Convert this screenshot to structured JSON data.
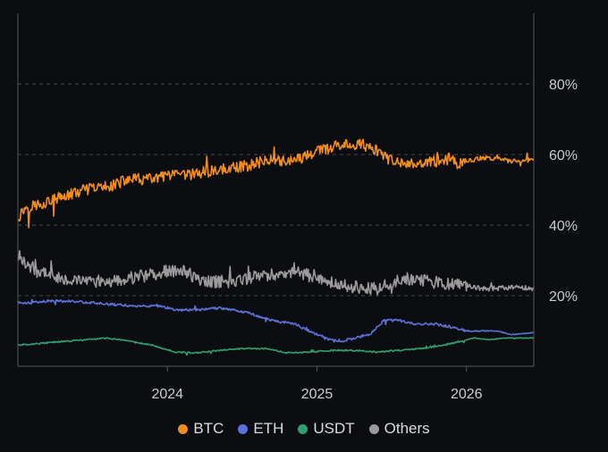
{
  "chart_data": {
    "type": "line",
    "title": "",
    "xlabel": "",
    "ylabel": "",
    "xlim": [
      2023.0,
      2026.45
    ],
    "ylim": [
      0,
      100
    ],
    "x_ticks": [
      {
        "value": 2024.0,
        "label": "2024"
      },
      {
        "value": 2025.0,
        "label": "2025"
      },
      {
        "value": 2026.0,
        "label": "2026"
      }
    ],
    "y_ticks": [
      {
        "value": 20,
        "label": "20%"
      },
      {
        "value": 40,
        "label": "40%"
      },
      {
        "value": 60,
        "label": "60%"
      },
      {
        "value": 80,
        "label": "80%"
      }
    ],
    "grid": "horizontal-dashed",
    "legend_position": "bottom-center",
    "series": [
      {
        "name": "BTC",
        "color": "#f08c1e",
        "points": [
          [
            2023.0,
            42
          ],
          [
            2023.05,
            45
          ],
          [
            2023.15,
            46
          ],
          [
            2023.3,
            48
          ],
          [
            2023.45,
            50
          ],
          [
            2023.6,
            51
          ],
          [
            2023.75,
            53
          ],
          [
            2023.9,
            53
          ],
          [
            2024.0,
            54
          ],
          [
            2024.1,
            54
          ],
          [
            2024.25,
            55
          ],
          [
            2024.4,
            56
          ],
          [
            2024.55,
            57
          ],
          [
            2024.7,
            59
          ],
          [
            2024.8,
            58
          ],
          [
            2024.9,
            59
          ],
          [
            2025.0,
            61
          ],
          [
            2025.1,
            62
          ],
          [
            2025.2,
            63
          ],
          [
            2025.3,
            63
          ],
          [
            2025.4,
            61
          ],
          [
            2025.5,
            58
          ],
          [
            2025.6,
            57
          ],
          [
            2025.7,
            58
          ],
          [
            2025.8,
            58
          ],
          [
            2025.9,
            59
          ],
          [
            2025.95,
            57
          ],
          [
            2026.0,
            58
          ],
          [
            2026.1,
            59
          ],
          [
            2026.2,
            59
          ],
          [
            2026.3,
            58
          ],
          [
            2026.45,
            58.5
          ]
        ]
      },
      {
        "name": "ETH",
        "color": "#5b73d9",
        "points": [
          [
            2023.0,
            18
          ],
          [
            2023.1,
            18
          ],
          [
            2023.2,
            18.5
          ],
          [
            2023.35,
            18.5
          ],
          [
            2023.5,
            18
          ],
          [
            2023.65,
            17.5
          ],
          [
            2023.8,
            17
          ],
          [
            2023.95,
            17
          ],
          [
            2024.05,
            16
          ],
          [
            2024.2,
            16
          ],
          [
            2024.35,
            16.5
          ],
          [
            2024.45,
            16
          ],
          [
            2024.55,
            15
          ],
          [
            2024.7,
            13
          ],
          [
            2024.85,
            12
          ],
          [
            2024.95,
            10
          ],
          [
            2025.05,
            8
          ],
          [
            2025.15,
            7
          ],
          [
            2025.25,
            8
          ],
          [
            2025.35,
            9
          ],
          [
            2025.45,
            13
          ],
          [
            2025.55,
            13
          ],
          [
            2025.65,
            12
          ],
          [
            2025.8,
            12
          ],
          [
            2025.9,
            11
          ],
          [
            2026.0,
            10
          ],
          [
            2026.1,
            10
          ],
          [
            2026.2,
            10
          ],
          [
            2026.3,
            9
          ],
          [
            2026.45,
            9.5
          ]
        ]
      },
      {
        "name": "USDT",
        "color": "#2f9e72",
        "points": [
          [
            2023.0,
            6
          ],
          [
            2023.15,
            6.5
          ],
          [
            2023.3,
            7
          ],
          [
            2023.45,
            7.5
          ],
          [
            2023.6,
            8
          ],
          [
            2023.75,
            7
          ],
          [
            2023.9,
            6
          ],
          [
            2024.05,
            4
          ],
          [
            2024.2,
            3.8
          ],
          [
            2024.35,
            4.5
          ],
          [
            2024.5,
            5
          ],
          [
            2024.65,
            5
          ],
          [
            2024.8,
            3.8
          ],
          [
            2024.95,
            4
          ],
          [
            2025.1,
            4.5
          ],
          [
            2025.25,
            4.5
          ],
          [
            2025.4,
            4
          ],
          [
            2025.55,
            4.5
          ],
          [
            2025.7,
            5
          ],
          [
            2025.85,
            6
          ],
          [
            2025.95,
            7
          ],
          [
            2026.05,
            8
          ],
          [
            2026.15,
            7.5
          ],
          [
            2026.25,
            8
          ],
          [
            2026.35,
            8
          ],
          [
            2026.45,
            8
          ]
        ]
      },
      {
        "name": "Others",
        "color": "#9a9a9a",
        "points": [
          [
            2023.0,
            31
          ],
          [
            2023.05,
            29
          ],
          [
            2023.15,
            27
          ],
          [
            2023.3,
            25
          ],
          [
            2023.45,
            24
          ],
          [
            2023.6,
            24
          ],
          [
            2023.75,
            25
          ],
          [
            2023.9,
            26
          ],
          [
            2024.0,
            27
          ],
          [
            2024.1,
            27
          ],
          [
            2024.25,
            24
          ],
          [
            2024.4,
            24
          ],
          [
            2024.55,
            25
          ],
          [
            2024.7,
            26
          ],
          [
            2024.85,
            27
          ],
          [
            2025.0,
            25
          ],
          [
            2025.1,
            24
          ],
          [
            2025.2,
            23
          ],
          [
            2025.3,
            22
          ],
          [
            2025.4,
            22
          ],
          [
            2025.5,
            24
          ],
          [
            2025.6,
            25
          ],
          [
            2025.75,
            24
          ],
          [
            2025.9,
            23
          ],
          [
            2026.0,
            23
          ],
          [
            2026.1,
            22
          ],
          [
            2026.2,
            22
          ],
          [
            2026.3,
            22.5
          ],
          [
            2026.45,
            22
          ]
        ]
      }
    ]
  }
}
